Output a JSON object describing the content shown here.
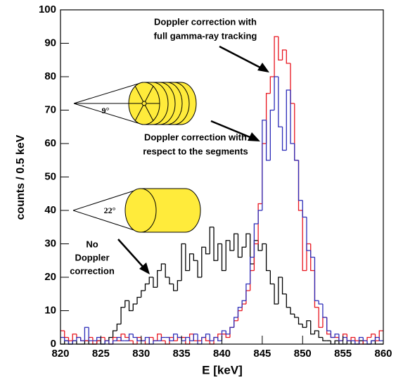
{
  "chart_data": {
    "type": "histogram",
    "xlabel": "E [keV]",
    "ylabel": "counts / 0.5 keV",
    "bins": [
      820,
      820.5,
      821,
      821.5,
      822,
      822.5,
      823,
      823.5,
      824,
      824.5,
      825,
      825.5,
      826,
      826.5,
      827,
      827.5,
      828,
      828.5,
      829,
      829.5,
      830,
      830.5,
      831,
      831.5,
      832,
      832.5,
      833,
      833.5,
      834,
      834.5,
      835,
      835.5,
      836,
      836.5,
      837,
      837.5,
      838,
      838.5,
      839,
      839.5,
      840,
      840.5,
      841,
      841.5,
      842,
      842.5,
      843,
      843.5,
      844,
      844.5,
      845,
      845.5,
      846,
      846.5,
      847,
      847.5,
      848,
      848.5,
      849,
      849.5,
      850,
      850.5,
      851,
      851.5,
      852,
      852.5,
      853,
      853.5,
      854,
      854.5,
      855,
      855.5,
      856,
      856.5,
      857,
      857.5,
      858,
      858.5,
      859,
      859.5,
      860
    ],
    "series": [
      {
        "color": "#000000",
        "values": [
          0,
          1,
          0,
          1,
          0,
          0,
          1,
          0,
          0,
          1,
          0,
          1,
          2,
          4,
          6,
          11,
          13,
          10,
          12,
          14,
          16,
          18,
          20,
          17,
          22,
          24,
          20,
          18,
          16,
          19,
          30,
          22,
          27,
          25,
          20,
          29,
          27,
          35,
          25,
          30,
          22,
          31,
          28,
          33,
          26,
          29,
          33,
          24,
          31,
          28,
          30,
          22,
          18,
          12,
          20,
          15,
          11,
          9,
          8,
          6,
          5,
          7,
          3,
          4,
          2,
          1,
          1,
          0,
          1,
          0,
          0,
          1,
          0,
          0,
          1,
          0,
          0,
          1,
          0,
          0
        ]
      },
      {
        "color": "#e8141e",
        "values": [
          4,
          2,
          1,
          3,
          2,
          1,
          1,
          2,
          0,
          1,
          2,
          1,
          0,
          2,
          1,
          3,
          2,
          1,
          0,
          2,
          1,
          0,
          2,
          1,
          3,
          1,
          0,
          2,
          1,
          2,
          2,
          0,
          3,
          1,
          1,
          2,
          1,
          0,
          2,
          3,
          3,
          2,
          5,
          7,
          10,
          12,
          16,
          22,
          30,
          42,
          60,
          75,
          80,
          92,
          85,
          88,
          84,
          72,
          55,
          40,
          22,
          30,
          22,
          11,
          5,
          8,
          3,
          2,
          2,
          1,
          3,
          1,
          2,
          1,
          0,
          1,
          2,
          3,
          1,
          4
        ]
      },
      {
        "color": "#2b2bb8",
        "values": [
          2,
          1,
          0,
          1,
          2,
          1,
          5,
          1,
          1,
          2,
          0,
          1,
          0,
          1,
          2,
          1,
          1,
          3,
          2,
          1,
          1,
          2,
          0,
          1,
          1,
          2,
          2,
          1,
          3,
          2,
          1,
          2,
          1,
          3,
          0,
          2,
          3,
          1,
          2,
          1,
          4,
          3,
          5,
          8,
          11,
          13,
          18,
          26,
          36,
          40,
          67,
          55,
          70,
          80,
          65,
          58,
          76,
          60,
          55,
          43,
          38,
          28,
          26,
          13,
          12,
          8,
          4,
          2,
          3,
          1,
          2,
          1,
          1,
          0,
          2,
          1,
          0,
          1,
          2,
          1
        ]
      }
    ],
    "xlim": [
      820,
      860
    ],
    "xticks": [
      820,
      825,
      830,
      835,
      840,
      845,
      850,
      855,
      860
    ],
    "ylim": [
      0,
      100
    ],
    "yticks": [
      0,
      10,
      20,
      30,
      40,
      50,
      60,
      70,
      80,
      90,
      100
    ],
    "annotations": [
      {
        "lines": [
          "Doppler correction with",
          "full gamma-ray tracking"
        ]
      },
      {
        "lines": [
          "Doppler correction with",
          "respect to the segments"
        ]
      },
      {
        "lines": [
          "No",
          "Doppler",
          "correction"
        ]
      },
      {
        "lines": [
          "9°"
        ]
      },
      {
        "lines": [
          "22°"
        ]
      }
    ]
  }
}
